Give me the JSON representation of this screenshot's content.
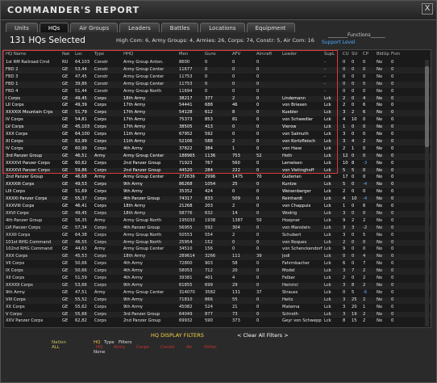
{
  "title": "COMMANDER'S REPORT",
  "close_label": "X",
  "tabs": [
    "Units",
    "HQs",
    "Air Groups",
    "Leaders",
    "Battles",
    "Locations",
    "Equipment"
  ],
  "active_tab": 1,
  "hq_count_label": "131 HQs Selected",
  "summary": "High Com: 6, Army Groups: 4, Armies: 26, Corps: 74, Constr: 5, Air Com: 16",
  "functions_label": "________Functions______",
  "support_level_label": "Support Level",
  "columns": [
    "HQ Name",
    "Nat",
    "Loc",
    "Type",
    "HHQ",
    "Men",
    "Guns",
    "AFV",
    "Aircraft",
    "Leader",
    "SupL",
    "CU",
    "SU",
    "CP",
    "BldUp",
    "Frzn"
  ],
  "rows": [
    [
      "1st RM Railroad Cmd",
      "RU",
      "64,103",
      "Constr",
      "Army Group Anton.",
      "8600",
      "0",
      "0",
      "0",
      "",
      "-",
      "0",
      "0",
      "0",
      "No",
      "0"
    ],
    [
      "FBD 2",
      "GE",
      "53,44",
      "Constr",
      "Army Group Center",
      "11677",
      "0",
      "0",
      "0",
      "",
      "-",
      "0",
      "0",
      "0",
      "No",
      "0"
    ],
    [
      "FBD 3",
      "GE",
      "47,45",
      "Constr",
      "Army Group Center",
      "11753",
      "0",
      "0",
      "0",
      "",
      "-",
      "0",
      "0",
      "0",
      "No",
      "0"
    ],
    [
      "FBD 1",
      "GE",
      "39,86",
      "Constr",
      "Army Group Center",
      "11753",
      "0",
      "0",
      "0",
      "",
      "-",
      "0",
      "0",
      "0",
      "No",
      "0"
    ],
    [
      "FBD 4",
      "GE",
      "51,44",
      "Constr",
      "Army Group North",
      "11694",
      "0",
      "0",
      "0",
      "",
      "-",
      "0",
      "0",
      "0",
      "No",
      "0"
    ],
    [
      "I Corps",
      "GE",
      "49,45",
      "Corps",
      "18th Army",
      "38217",
      "377",
      "2",
      "0",
      "Lindemann",
      "Lck",
      "2",
      "0",
      "4",
      "No",
      "0"
    ],
    [
      "LII Corps",
      "GE",
      "49,39",
      "Corps",
      "17th Army",
      "54441",
      "688",
      "46",
      "0",
      "von Briesen",
      "Lck",
      "2",
      "0",
      "6",
      "No",
      "0"
    ],
    [
      "XXXXIX Mountain Crps",
      "GE",
      "51,79",
      "Corps",
      "17th Army",
      "54128",
      "612",
      "8",
      "0",
      "Kuebler",
      "Lck",
      "3",
      "2",
      "6",
      "No",
      "0"
    ],
    [
      "IV Corps",
      "GE",
      "54,81",
      "Corps",
      "17th Army",
      "75373",
      "853",
      "81",
      "0",
      "von Schwedler",
      "Lck",
      "4",
      "10",
      "0",
      "No",
      "0"
    ],
    [
      "LV Corps",
      "GE",
      "45,103",
      "Corps",
      "17th Army",
      "38505",
      "413",
      "0",
      "0",
      "Vierow",
      "Lck",
      "1",
      "0",
      "0",
      "No",
      "0"
    ],
    [
      "XXX Corps",
      "GE",
      "64,100",
      "Corps",
      "11th Army",
      "67952",
      "592",
      "0",
      "0",
      "von Salmuth",
      "Lck",
      "3",
      "0",
      "0",
      "No",
      "0"
    ],
    [
      "XI Corps",
      "GE",
      "62,99",
      "Corps",
      "11th Army",
      "52106",
      "588",
      "2",
      "0",
      "von Kortzfleisch",
      "Lck",
      "3",
      "4",
      "2",
      "No",
      "0"
    ],
    [
      "IV Corps",
      "GE",
      "60,99",
      "Corps",
      "4th Army",
      "37822",
      "384",
      "1",
      "0",
      "von Hase",
      "Lck",
      "2",
      "1",
      "0",
      "No",
      "0"
    ],
    [
      "3rd Panzer Group",
      "GE",
      "46,51",
      "Army",
      "Army Group Center",
      "188965",
      "1136",
      "753",
      "52",
      "Hoth",
      "Lck",
      "12",
      "0",
      "0",
      "No",
      "0"
    ],
    [
      "XXXXVI Panzer Corps",
      "GE",
      "60,62",
      "Corps",
      "2nd Panzer Group",
      "71923",
      "767",
      "560",
      "0",
      "Lemelsen",
      "Lck",
      "10",
      "8",
      "-3",
      "No",
      "0"
    ],
    [
      "XXXXVI Panzer Corps",
      "GE",
      "59,86",
      "Corps",
      "2nd Panzer Group",
      "44520",
      "284",
      "222",
      "0",
      "von Vietinghoff",
      "Lck",
      "5",
      "5",
      "0",
      "No",
      "0"
    ],
    [
      "2nd Panzer Group",
      "GE",
      "46,68",
      "Army",
      "Army Group Center",
      "272636",
      "2996",
      "1475",
      "70",
      "Guderian",
      "Lck",
      "17",
      "0",
      "0",
      "No",
      "0"
    ],
    [
      "XXXXIII Corps",
      "GE",
      "49,53",
      "Corps",
      "9th Army",
      "86268",
      "1054",
      "25",
      "0",
      "Kuntze",
      "Lck",
      "5",
      "0",
      "-4",
      "No",
      "0"
    ],
    [
      "LIII Corps",
      "GE",
      "51,69",
      "Corps",
      "9th Army",
      "35352",
      "424",
      "0",
      "0",
      "Weisenberger",
      "Lck",
      "2",
      "0",
      "0",
      "No",
      "0"
    ],
    [
      "XXXXI Panzer Corps",
      "GE",
      "55,37",
      "Corps",
      "4th Panzer Group",
      "74317",
      "833",
      "509",
      "0",
      "Reinhardt",
      "Lck",
      "4",
      "10",
      "-4",
      "No",
      "0"
    ],
    [
      "XXXVIII Corps",
      "GE",
      "46,41",
      "Corps",
      "18th Army",
      "21268",
      "203",
      "2",
      "0",
      "von Chappuis",
      "Lck",
      "1",
      "0",
      "6",
      "No",
      "0"
    ],
    [
      "XXVI Corps",
      "GE",
      "49,45",
      "Corps",
      "18th Army",
      "58776",
      "632",
      "14",
      "0",
      "Wodrig",
      "Lck",
      "3",
      "0",
      "0",
      "No",
      "0"
    ],
    [
      "4th Panzer Group",
      "GE",
      "56,35",
      "Army",
      "Army Group North",
      "195033",
      "1938",
      "1387",
      "50",
      "Hoepner",
      "Lck",
      "9",
      "2",
      "2",
      "No",
      "0"
    ],
    [
      "LVI Panzer Corps",
      "GE",
      "57,34",
      "Corps",
      "4th Panzer Group",
      "56955",
      "592",
      "304",
      "0",
      "von Manstein",
      "Lck",
      "3",
      "3",
      "-2",
      "No",
      "0"
    ],
    [
      "XXXII Corps",
      "GE",
      "64,38",
      "Corps",
      "Army Group North",
      "50553",
      "554",
      "2",
      "0",
      "Schubert",
      "Lck",
      "3",
      "0",
      "5",
      "No",
      "0"
    ],
    [
      "101st RHG Command",
      "GE",
      "46,55",
      "Corps",
      "Army Group North",
      "25954",
      "152",
      "0",
      "0",
      "von Roques",
      "Lck",
      "2",
      "0",
      "0",
      "No",
      "0"
    ],
    [
      "102nd RHG Command",
      "GE",
      "44,63",
      "Army",
      "Army Group Center",
      "34510",
      "156",
      "0",
      "0",
      "von Schenckendorf",
      "Lck",
      "9",
      "0",
      "0",
      "No",
      "0"
    ],
    [
      "XXX Corps",
      "GE",
      "45,53",
      "Corps",
      "18th Army",
      "289614",
      "3266",
      "111",
      "39",
      "Jodl",
      "Lck",
      "0",
      "0",
      "4",
      "No",
      "0"
    ],
    [
      "VII Corps",
      "GE",
      "50,66",
      "Corps",
      "4th Army",
      "72800",
      "903",
      "58",
      "0",
      "Fahrmbacher",
      "Lck",
      "6",
      "0",
      "7",
      "No",
      "0"
    ],
    [
      "IX Corps",
      "GE",
      "50,66",
      "Corps",
      "4th Army",
      "58053",
      "712",
      "20",
      "0",
      "Model",
      "Lck",
      "3",
      "7",
      "2",
      "No",
      "0"
    ],
    [
      "XII Corps",
      "GE",
      "51,59",
      "Corps",
      "4th Army",
      "39381",
      "401",
      "4",
      "0",
      "Felber",
      "Lck",
      "2",
      "0",
      "2",
      "No",
      "0"
    ],
    [
      "XXXXII Corps",
      "GE",
      "53,66",
      "Corps",
      "9th Army",
      "61855",
      "699",
      "29",
      "0",
      "Heinrici",
      "Lck",
      "3",
      "8",
      "2",
      "No",
      "0"
    ],
    [
      "9th Army",
      "GE",
      "47,51",
      "Army",
      "Army Group Center",
      "314070",
      "3582",
      "131",
      "37",
      "Strauss",
      "Lck",
      "0",
      "5",
      "-6",
      "No",
      "0"
    ],
    [
      "VIII Corps",
      "GE",
      "55,52",
      "Corps",
      "9th Army",
      "71810",
      "866",
      "55",
      "0",
      "Heitz",
      "Lck",
      "3",
      "25",
      "2",
      "No",
      "0"
    ],
    [
      "XX Corps",
      "GE",
      "55,62",
      "Corps",
      "9th Army",
      "45082",
      "524",
      "21",
      "0",
      "Materna",
      "Lck",
      "3",
      "20",
      "1",
      "No",
      "0"
    ],
    [
      "V Corps",
      "GE",
      "55,66",
      "Corps",
      "3rd Panzer Group",
      "64049",
      "877",
      "73",
      "0",
      "Schroth",
      "Lck",
      "3",
      "19",
      "2",
      "No",
      "0"
    ],
    [
      "XXV Panzer Corps",
      "GE",
      "62,82",
      "Corps",
      "2nd Panzer Group",
      "69932",
      "590",
      "373",
      "0",
      "Geyr von Schwepp",
      "Lck",
      "8",
      "15",
      "2",
      "No",
      "0"
    ]
  ],
  "blue_cp_rows": [
    14,
    17,
    19,
    32
  ],
  "filters": {
    "title": "HQ DISPLAY FILTERS",
    "clear": "< Clear All Filters >",
    "nation_label": "Nation",
    "nation_value": "ALL",
    "hq_label": "HQ",
    "type_label": "Type",
    "filters_label": "Filters",
    "none_label": "None",
    "red_options": [
      "HQ",
      "Army",
      "Corps",
      "Constr",
      "Air",
      "Other"
    ]
  }
}
